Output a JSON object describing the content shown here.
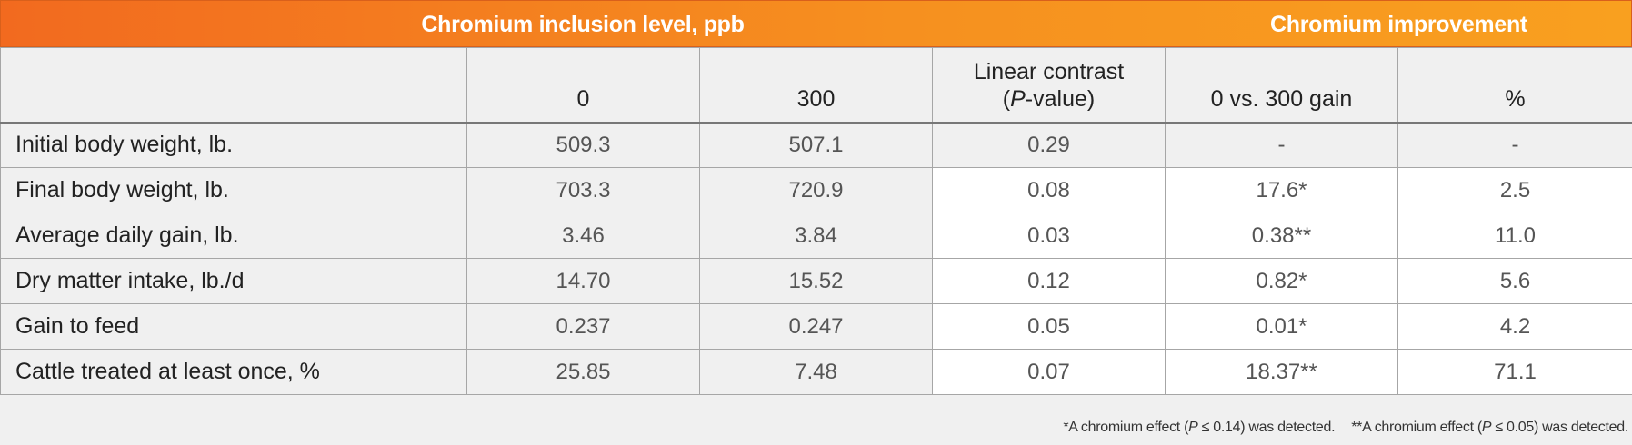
{
  "header": {
    "left": "Chromium inclusion level, ppb",
    "right": "Chromium improvement"
  },
  "columns": {
    "c0": "0",
    "c300": "300",
    "linear_line1": "Linear contrast",
    "linear_open": "(",
    "linear_p": "P",
    "linear_close": "-value)",
    "gain": "0 vs. 300 gain",
    "pct": "%"
  },
  "rows": [
    {
      "label": "Initial body weight, lb.",
      "c0": "509.3",
      "c300": "507.1",
      "p": "0.29",
      "gain": "-",
      "pct": "-"
    },
    {
      "label": "Final body weight, lb.",
      "c0": "703.3",
      "c300": "720.9",
      "p": "0.08",
      "gain": "17.6*",
      "pct": "2.5"
    },
    {
      "label": "Average daily gain, lb.",
      "c0": "3.46",
      "c300": "3.84",
      "p": "0.03",
      "gain": "0.38**",
      "pct": "11.0"
    },
    {
      "label": "Dry matter intake, lb./d",
      "c0": "14.70",
      "c300": "15.52",
      "p": "0.12",
      "gain": "0.82*",
      "pct": "5.6"
    },
    {
      "label": "Gain to feed",
      "c0": "0.237",
      "c300": "0.247",
      "p": "0.05",
      "gain": "0.01*",
      "pct": "4.2"
    },
    {
      "label": "Cattle treated at least once, %",
      "c0": "25.85",
      "c300": "7.48",
      "p": "0.07",
      "gain": "18.37**",
      "pct": "71.1"
    }
  ],
  "footnote": {
    "n1_pre": "*A chromium effect (",
    "n1_p": "P",
    "n1_post": " ≤ 0.14) was detected.",
    "n2_pre": "**A chromium effect (",
    "n2_p": "P",
    "n2_post": " ≤ 0.05) was detected."
  }
}
